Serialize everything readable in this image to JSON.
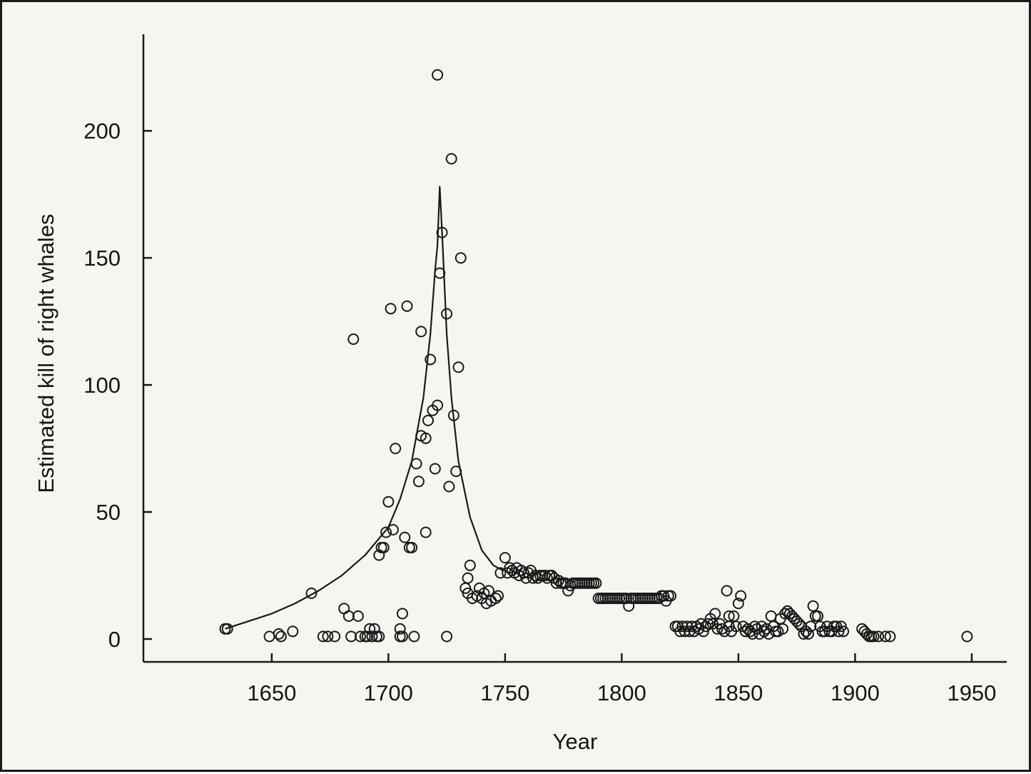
{
  "chart_data": {
    "type": "scatter",
    "title": "",
    "xlabel": "Year",
    "ylabel": "Estimated kill of right whales",
    "xlim": [
      1595,
      1965
    ],
    "ylim": [
      -9,
      238
    ],
    "xticks": [
      "1650",
      "1700",
      "1750",
      "1800",
      "1850",
      "1900",
      "1950"
    ],
    "yticks": [
      "0",
      "50",
      "100",
      "150",
      "200"
    ],
    "grid": false,
    "legend": "none",
    "colors": {
      "marker": "#1a1a1a",
      "line": "#1a1a1a",
      "background": "#f7f5f1"
    },
    "series": [
      {
        "type": "scatter",
        "marker": "open-circle",
        "points": [
          [
            1630,
            4
          ],
          [
            1631,
            4
          ],
          [
            1649,
            1
          ],
          [
            1653,
            2
          ],
          [
            1654,
            1
          ],
          [
            1659,
            3
          ],
          [
            1667,
            18
          ],
          [
            1672,
            1
          ],
          [
            1674,
            1
          ],
          [
            1677,
            1
          ],
          [
            1681,
            12
          ],
          [
            1683,
            9
          ],
          [
            1684,
            1
          ],
          [
            1685,
            118
          ],
          [
            1687,
            9
          ],
          [
            1688,
            1
          ],
          [
            1690,
            1
          ],
          [
            1691,
            1
          ],
          [
            1692,
            4
          ],
          [
            1693,
            1
          ],
          [
            1694,
            4
          ],
          [
            1695,
            1
          ],
          [
            1696,
            1
          ],
          [
            1696,
            33
          ],
          [
            1697,
            36
          ],
          [
            1698,
            36
          ],
          [
            1699,
            42
          ],
          [
            1700,
            54
          ],
          [
            1701,
            130
          ],
          [
            1702,
            43
          ],
          [
            1703,
            75
          ],
          [
            1705,
            1
          ],
          [
            1705,
            4
          ],
          [
            1706,
            10
          ],
          [
            1706,
            1
          ],
          [
            1707,
            40
          ],
          [
            1708,
            131
          ],
          [
            1709,
            36
          ],
          [
            1710,
            36
          ],
          [
            1711,
            1
          ],
          [
            1712,
            69
          ],
          [
            1713,
            62
          ],
          [
            1714,
            121
          ],
          [
            1714,
            80
          ],
          [
            1716,
            42
          ],
          [
            1716,
            79
          ],
          [
            1717,
            86
          ],
          [
            1718,
            110
          ],
          [
            1719,
            90
          ],
          [
            1720,
            67
          ],
          [
            1721,
            92
          ],
          [
            1721,
            222
          ],
          [
            1722,
            144
          ],
          [
            1723,
            160
          ],
          [
            1725,
            1
          ],
          [
            1725,
            128
          ],
          [
            1726,
            60
          ],
          [
            1727,
            189
          ],
          [
            1728,
            88
          ],
          [
            1729,
            66
          ],
          [
            1730,
            107
          ],
          [
            1731,
            150
          ],
          [
            1733,
            20
          ],
          [
            1734,
            24
          ],
          [
            1734,
            18
          ],
          [
            1735,
            29
          ],
          [
            1736,
            16
          ],
          [
            1738,
            17
          ],
          [
            1739,
            20
          ],
          [
            1740,
            16
          ],
          [
            1741,
            18
          ],
          [
            1742,
            14
          ],
          [
            1743,
            19
          ],
          [
            1744,
            15
          ],
          [
            1746,
            16
          ],
          [
            1747,
            17
          ],
          [
            1748,
            26
          ],
          [
            1750,
            32
          ],
          [
            1751,
            26
          ],
          [
            1752,
            28
          ],
          [
            1753,
            27
          ],
          [
            1754,
            26
          ],
          [
            1755,
            28
          ],
          [
            1756,
            25
          ],
          [
            1757,
            27
          ],
          [
            1758,
            26
          ],
          [
            1759,
            24
          ],
          [
            1760,
            26
          ],
          [
            1761,
            27
          ],
          [
            1762,
            24
          ],
          [
            1763,
            25
          ],
          [
            1764,
            24
          ],
          [
            1765,
            25
          ],
          [
            1766,
            25
          ],
          [
            1767,
            25
          ],
          [
            1768,
            24
          ],
          [
            1769,
            25
          ],
          [
            1770,
            25
          ],
          [
            1771,
            24
          ],
          [
            1772,
            22
          ],
          [
            1773,
            23
          ],
          [
            1774,
            22
          ],
          [
            1775,
            22
          ],
          [
            1776,
            22
          ],
          [
            1777,
            19
          ],
          [
            1778,
            21
          ],
          [
            1779,
            22
          ],
          [
            1780,
            22
          ],
          [
            1781,
            22
          ],
          [
            1782,
            22
          ],
          [
            1783,
            22
          ],
          [
            1784,
            22
          ],
          [
            1785,
            22
          ],
          [
            1786,
            22
          ],
          [
            1787,
            22
          ],
          [
            1788,
            22
          ],
          [
            1789,
            22
          ],
          [
            1790,
            16
          ],
          [
            1791,
            16
          ],
          [
            1792,
            16
          ],
          [
            1793,
            16
          ],
          [
            1794,
            16
          ],
          [
            1795,
            16
          ],
          [
            1796,
            16
          ],
          [
            1797,
            16
          ],
          [
            1798,
            16
          ],
          [
            1799,
            16
          ],
          [
            1800,
            16
          ],
          [
            1801,
            16
          ],
          [
            1802,
            16
          ],
          [
            1803,
            13
          ],
          [
            1804,
            16
          ],
          [
            1805,
            16
          ],
          [
            1806,
            16
          ],
          [
            1807,
            16
          ],
          [
            1808,
            16
          ],
          [
            1809,
            16
          ],
          [
            1810,
            16
          ],
          [
            1811,
            16
          ],
          [
            1812,
            16
          ],
          [
            1813,
            16
          ],
          [
            1814,
            16
          ],
          [
            1815,
            16
          ],
          [
            1816,
            16
          ],
          [
            1817,
            17
          ],
          [
            1818,
            17
          ],
          [
            1819,
            15
          ],
          [
            1820,
            17
          ],
          [
            1821,
            17
          ],
          [
            1823,
            5
          ],
          [
            1824,
            5
          ],
          [
            1825,
            3
          ],
          [
            1826,
            5
          ],
          [
            1827,
            3
          ],
          [
            1828,
            5
          ],
          [
            1829,
            3
          ],
          [
            1830,
            5
          ],
          [
            1831,
            3
          ],
          [
            1832,
            5
          ],
          [
            1833,
            4
          ],
          [
            1834,
            6
          ],
          [
            1835,
            3
          ],
          [
            1836,
            5
          ],
          [
            1837,
            6
          ],
          [
            1838,
            8
          ],
          [
            1839,
            6
          ],
          [
            1840,
            10
          ],
          [
            1841,
            4
          ],
          [
            1842,
            6
          ],
          [
            1843,
            4
          ],
          [
            1844,
            3
          ],
          [
            1845,
            19
          ],
          [
            1846,
            5
          ],
          [
            1846,
            9
          ],
          [
            1847,
            3
          ],
          [
            1848,
            9
          ],
          [
            1849,
            5
          ],
          [
            1850,
            14
          ],
          [
            1851,
            17
          ],
          [
            1852,
            5
          ],
          [
            1853,
            3
          ],
          [
            1854,
            4
          ],
          [
            1855,
            3
          ],
          [
            1856,
            2
          ],
          [
            1857,
            5
          ],
          [
            1858,
            4
          ],
          [
            1859,
            2
          ],
          [
            1860,
            5
          ],
          [
            1861,
            3
          ],
          [
            1862,
            4
          ],
          [
            1863,
            2
          ],
          [
            1864,
            9
          ],
          [
            1865,
            5
          ],
          [
            1866,
            3
          ],
          [
            1867,
            3
          ],
          [
            1868,
            8
          ],
          [
            1869,
            4
          ],
          [
            1870,
            10
          ],
          [
            1871,
            11
          ],
          [
            1872,
            10
          ],
          [
            1873,
            9
          ],
          [
            1874,
            8
          ],
          [
            1875,
            7
          ],
          [
            1876,
            6
          ],
          [
            1877,
            5
          ],
          [
            1878,
            2
          ],
          [
            1879,
            3
          ],
          [
            1880,
            2
          ],
          [
            1881,
            5
          ],
          [
            1882,
            13
          ],
          [
            1883,
            9
          ],
          [
            1884,
            9
          ],
          [
            1885,
            5
          ],
          [
            1886,
            3
          ],
          [
            1887,
            3
          ],
          [
            1888,
            5
          ],
          [
            1889,
            3
          ],
          [
            1890,
            3
          ],
          [
            1891,
            5
          ],
          [
            1892,
            5
          ],
          [
            1893,
            3
          ],
          [
            1894,
            5
          ],
          [
            1895,
            3
          ],
          [
            1903,
            4
          ],
          [
            1904,
            3
          ],
          [
            1905,
            2
          ],
          [
            1906,
            1
          ],
          [
            1907,
            1
          ],
          [
            1908,
            1
          ],
          [
            1910,
            1
          ],
          [
            1913,
            1
          ],
          [
            1915,
            1
          ],
          [
            1948,
            1
          ]
        ]
      },
      {
        "type": "line",
        "points": [
          [
            1630,
            4
          ],
          [
            1640,
            7
          ],
          [
            1650,
            10
          ],
          [
            1660,
            14
          ],
          [
            1670,
            19
          ],
          [
            1680,
            25
          ],
          [
            1690,
            33
          ],
          [
            1700,
            44
          ],
          [
            1705,
            55
          ],
          [
            1710,
            70
          ],
          [
            1715,
            95
          ],
          [
            1718,
            120
          ],
          [
            1720,
            145
          ],
          [
            1721,
            155
          ],
          [
            1722,
            178
          ],
          [
            1723,
            160
          ],
          [
            1725,
            120
          ],
          [
            1727,
            95
          ],
          [
            1730,
            70
          ],
          [
            1735,
            48
          ],
          [
            1740,
            35
          ],
          [
            1745,
            29
          ],
          [
            1749,
            27
          ]
        ]
      }
    ]
  }
}
